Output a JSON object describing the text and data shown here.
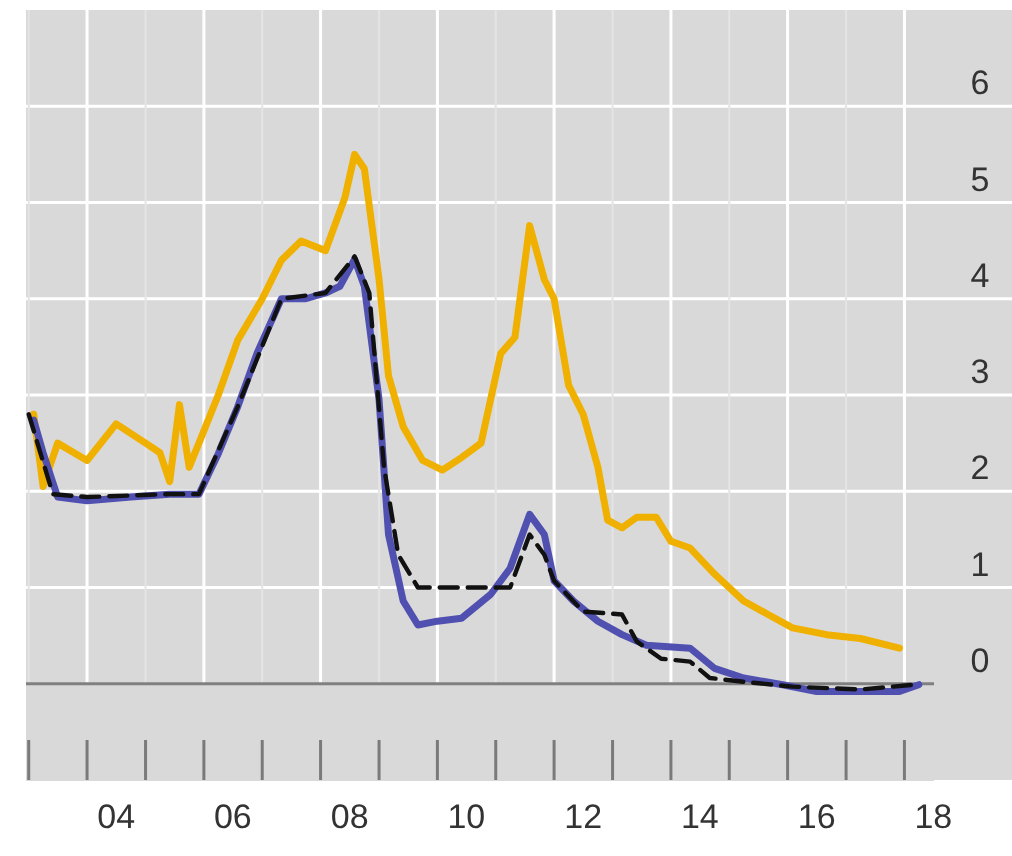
{
  "chart_data": {
    "type": "line",
    "xlim": [
      "2002-12-15",
      "2018-07-05"
    ],
    "ylim": [
      -1,
      7
    ],
    "xticks": [
      {
        "value": "2003-01-01",
        "label": null
      },
      {
        "value": "2004-01-01",
        "label": null
      },
      {
        "value": "2005-01-01",
        "label": null
      },
      {
        "value": "2006-01-01",
        "label": null
      },
      {
        "value": "2007-01-01",
        "label": null
      },
      {
        "value": "2008-01-01",
        "label": null
      },
      {
        "value": "2009-01-01",
        "label": null
      },
      {
        "value": "2010-01-01",
        "label": null
      },
      {
        "value": "2011-01-01",
        "label": null
      },
      {
        "value": "2012-01-01",
        "label": null
      },
      {
        "value": "2013-01-01",
        "label": null
      },
      {
        "value": "2014-01-01",
        "label": null
      },
      {
        "value": "2015-01-01",
        "label": null
      },
      {
        "value": "2016-01-01",
        "label": null
      },
      {
        "value": "2017-01-01",
        "label": null
      },
      {
        "value": "2018-01-01",
        "label": null
      },
      {
        "value": "2004-07-01",
        "label": "04"
      },
      {
        "value": "2006-07-01",
        "label": "06"
      },
      {
        "value": "2008-07-01",
        "label": "08"
      },
      {
        "value": "2010-07-01",
        "label": "10"
      },
      {
        "value": "2012-07-01",
        "label": "12"
      },
      {
        "value": "2014-07-01",
        "label": "14"
      },
      {
        "value": "2016-07-01",
        "label": "16"
      },
      {
        "value": "2018-07-01",
        "label": "18"
      }
    ],
    "yticks": [
      0,
      1,
      2,
      3,
      4,
      5,
      6
    ],
    "grid": true,
    "marker": "none",
    "series": [
      {
        "color": "#f0b000",
        "line_style": "solid",
        "x": [
          "2003-02",
          "2003-04",
          "2003-07",
          "2004-01",
          "2004-07",
          "2005-01",
          "2005-04",
          "2005-06",
          "2005-08",
          "2005-10",
          "2005-12",
          "2006-04",
          "2006-08",
          "2007-01",
          "2007-05",
          "2007-09",
          "2008-02",
          "2008-06",
          "2008-08",
          "2008-10",
          "2009-01",
          "2009-03",
          "2009-06",
          "2009-10",
          "2010-02",
          "2010-06",
          "2010-10",
          "2011-02",
          "2011-05",
          "2011-08",
          "2011-11",
          "2012-01",
          "2012-04",
          "2012-07",
          "2012-10",
          "2012-12",
          "2013-03",
          "2013-06",
          "2013-10",
          "2014-01",
          "2014-05",
          "2014-10",
          "2015-04",
          "2015-09",
          "2016-02",
          "2016-09",
          "2017-04",
          "2017-12"
        ],
        "values": [
          2.8,
          2.05,
          2.5,
          2.32,
          2.7,
          2.5,
          2.4,
          2.1,
          2.9,
          2.25,
          2.5,
          3.0,
          3.57,
          4.0,
          4.4,
          4.6,
          4.5,
          5.05,
          5.5,
          5.35,
          4.2,
          3.2,
          2.67,
          2.32,
          2.22,
          2.35,
          2.5,
          3.43,
          3.6,
          4.76,
          4.2,
          4.0,
          3.1,
          2.8,
          2.25,
          1.7,
          1.62,
          1.73,
          1.73,
          1.48,
          1.41,
          1.14,
          0.86,
          0.72,
          0.58,
          0.51,
          0.47,
          0.37
        ]
      },
      {
        "color": "#5050b0",
        "line_style": "solid",
        "x": [
          "2003-02",
          "2003-04",
          "2003-07",
          "2004-01",
          "2004-10",
          "2005-06",
          "2005-12",
          "2006-04",
          "2006-08",
          "2006-12",
          "2007-05",
          "2007-10",
          "2008-02",
          "2008-05",
          "2008-08",
          "2008-10",
          "2009-01",
          "2009-03",
          "2009-06",
          "2009-09",
          "2010-01",
          "2010-06",
          "2010-12",
          "2011-04",
          "2011-08",
          "2011-11",
          "2012-01",
          "2012-05",
          "2012-10",
          "2013-03",
          "2013-08",
          "2014-05",
          "2014-10",
          "2015-04",
          "2015-12",
          "2016-07",
          "2017-04",
          "2017-12",
          "2018-04"
        ],
        "values": [
          2.74,
          2.4,
          1.94,
          1.9,
          1.94,
          1.97,
          1.97,
          2.39,
          2.88,
          3.44,
          4.0,
          4.0,
          4.06,
          4.13,
          4.41,
          4.13,
          2.95,
          1.55,
          0.86,
          0.61,
          0.65,
          0.68,
          0.93,
          1.2,
          1.76,
          1.55,
          1.07,
          0.86,
          0.65,
          0.51,
          0.4,
          0.37,
          0.16,
          0.06,
          -0.01,
          -0.08,
          -0.08,
          -0.08,
          -0.01
        ]
      },
      {
        "color": "#111111",
        "line_style": "dashed",
        "x": [
          "2003-01",
          "2003-06",
          "2004-01",
          "2005-06",
          "2005-12",
          "2006-08",
          "2007-05",
          "2008-02",
          "2008-08",
          "2008-11",
          "2009-02",
          "2009-05",
          "2009-09",
          "2010-06",
          "2011-04",
          "2011-08",
          "2011-11",
          "2012-01",
          "2012-07",
          "2013-03",
          "2013-06",
          "2013-11",
          "2014-05",
          "2014-09",
          "2015-04",
          "2016-02",
          "2017-04",
          "2018-03"
        ],
        "values": [
          2.8,
          1.97,
          1.94,
          1.97,
          1.97,
          2.88,
          4.0,
          4.06,
          4.44,
          4.06,
          2.25,
          1.34,
          1.0,
          1.0,
          1.0,
          1.55,
          1.34,
          1.07,
          0.75,
          0.72,
          0.44,
          0.26,
          0.23,
          0.06,
          0.02,
          -0.03,
          -0.06,
          -0.01
        ]
      }
    ]
  }
}
